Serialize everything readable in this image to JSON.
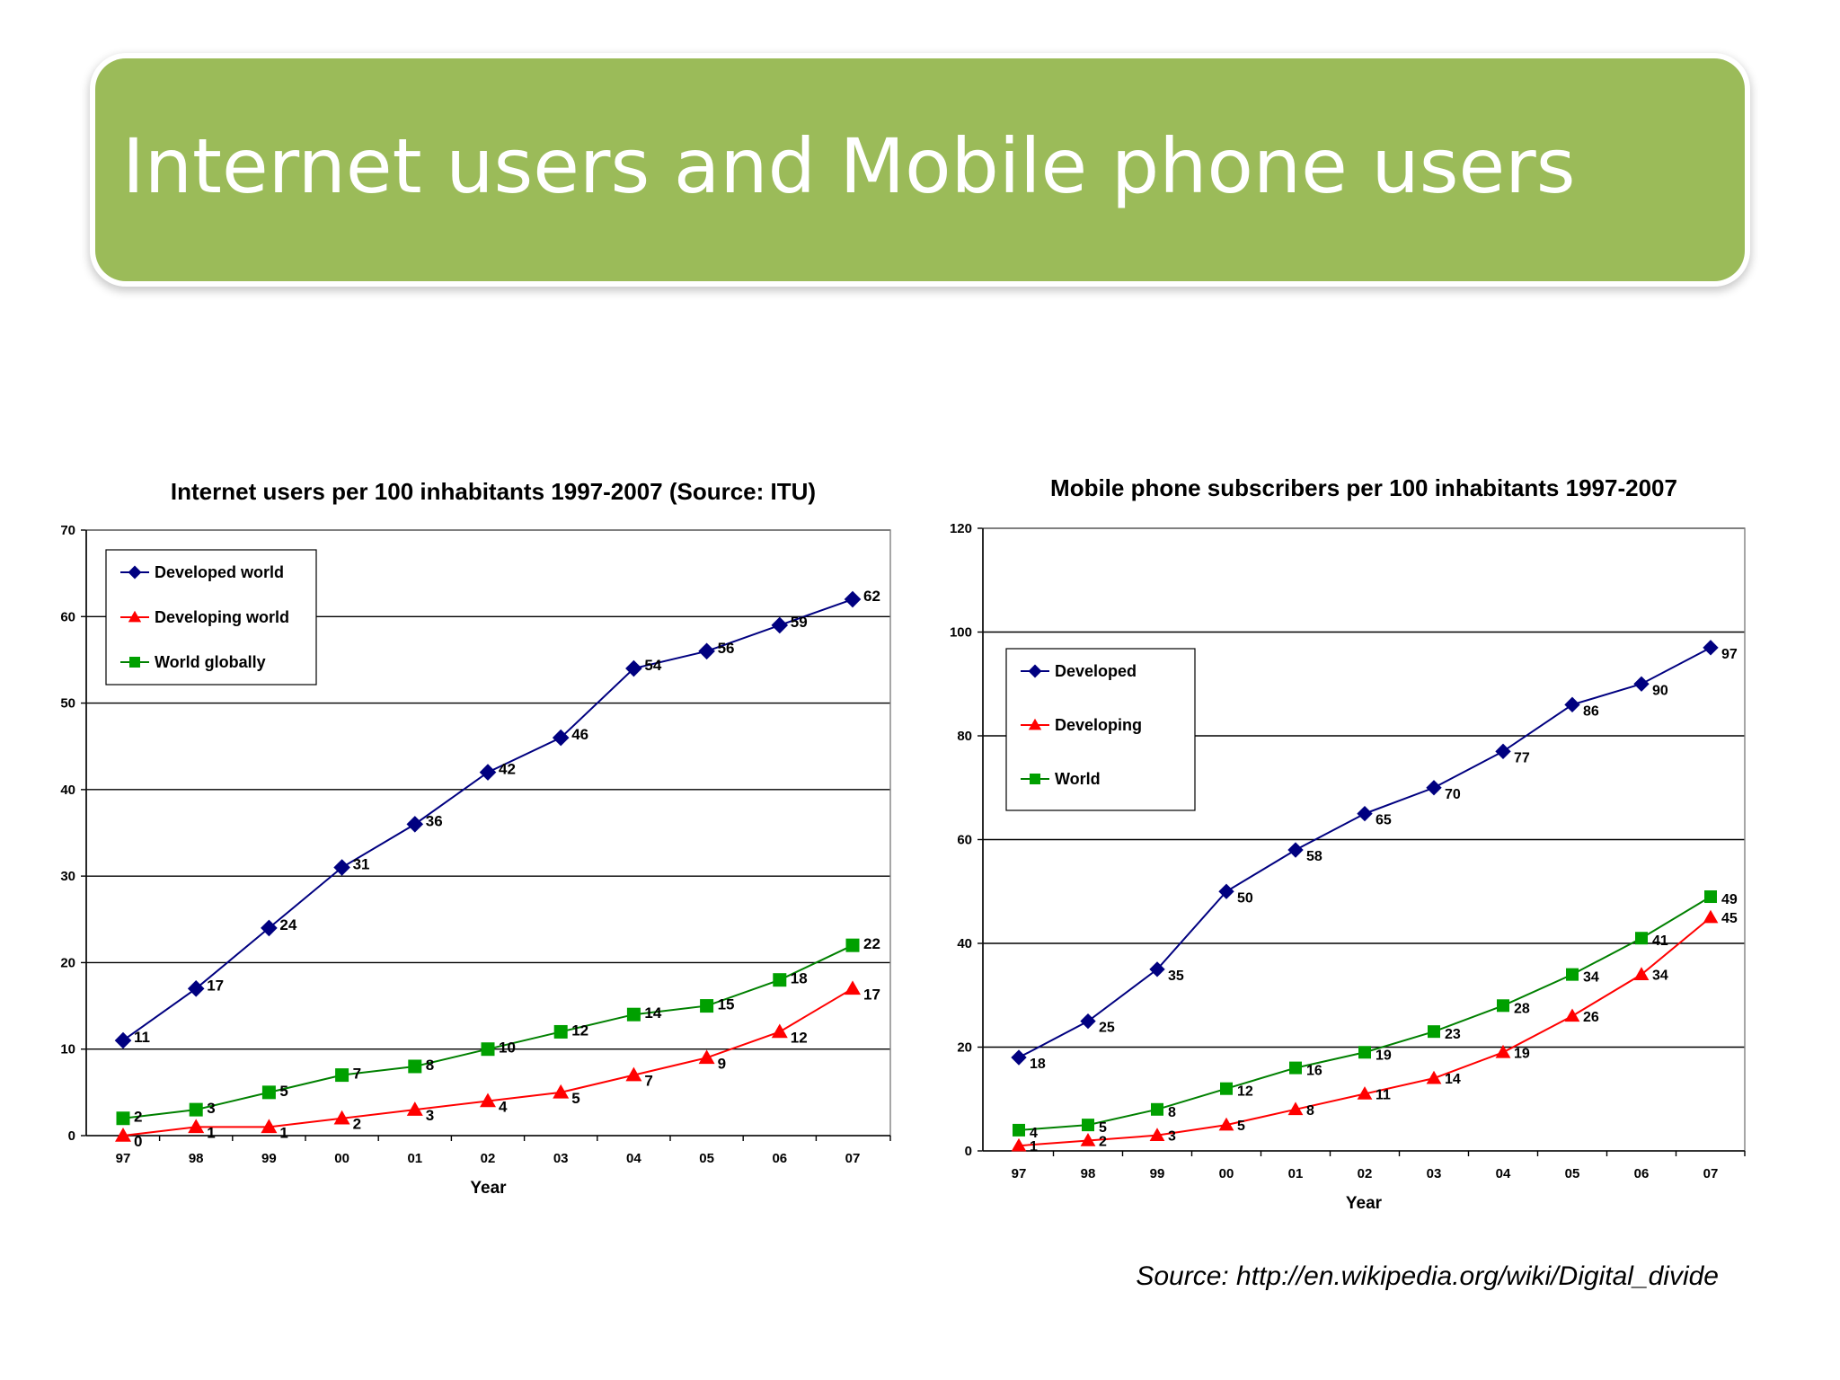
{
  "slide": {
    "title": "Internet users and Mobile phone users",
    "source": "Source: http://en.wikipedia.org/wiki/Digital_divide"
  },
  "colors": {
    "title_bar": "#9bbb59",
    "developed": "#000080",
    "developing": "#ff0000",
    "world": "#008000",
    "world_marker": "#00a000"
  },
  "chart_data": [
    {
      "type": "line",
      "title": "Internet users per 100 inhabitants 1997-2007 (Source: ITU)",
      "xlabel": "Year",
      "ylabel": "",
      "categories": [
        "97",
        "98",
        "99",
        "00",
        "01",
        "02",
        "03",
        "04",
        "05",
        "06",
        "07"
      ],
      "ylim": [
        0,
        70
      ],
      "yticks": [
        0,
        10,
        20,
        30,
        40,
        50,
        60,
        70
      ],
      "grid": true,
      "legend_position": "top-left",
      "series": [
        {
          "name": "Developed world",
          "marker": "diamond",
          "color": "#000080",
          "values": [
            11,
            17,
            24,
            31,
            36,
            42,
            46,
            54,
            56,
            59,
            62
          ]
        },
        {
          "name": "Developing world",
          "marker": "triangle",
          "color": "#ff0000",
          "values": [
            0,
            1,
            1,
            2,
            3,
            4,
            5,
            7,
            9,
            12,
            17
          ]
        },
        {
          "name": "World globally",
          "marker": "square",
          "color": "#008000",
          "values": [
            2,
            3,
            5,
            7,
            8,
            10,
            12,
            14,
            15,
            18,
            22
          ]
        }
      ]
    },
    {
      "type": "line",
      "title": "Mobile phone subscribers per 100 inhabitants 1997-2007",
      "xlabel": "Year",
      "ylabel": "",
      "categories": [
        "97",
        "98",
        "99",
        "00",
        "01",
        "02",
        "03",
        "04",
        "05",
        "06",
        "07"
      ],
      "ylim": [
        0,
        120
      ],
      "yticks": [
        0,
        20,
        40,
        60,
        80,
        100,
        120
      ],
      "grid": true,
      "legend_position": "top-left",
      "series": [
        {
          "name": "Developed",
          "marker": "diamond",
          "color": "#000080",
          "values": [
            18,
            25,
            35,
            50,
            58,
            65,
            70,
            77,
            86,
            90,
            97
          ]
        },
        {
          "name": "Developing",
          "marker": "triangle",
          "color": "#ff0000",
          "values": [
            1,
            2,
            3,
            5,
            8,
            11,
            14,
            19,
            26,
            34,
            45
          ]
        },
        {
          "name": "World",
          "marker": "square",
          "color": "#008000",
          "values": [
            4,
            5,
            8,
            12,
            16,
            19,
            23,
            28,
            34,
            41,
            49
          ]
        }
      ]
    }
  ]
}
